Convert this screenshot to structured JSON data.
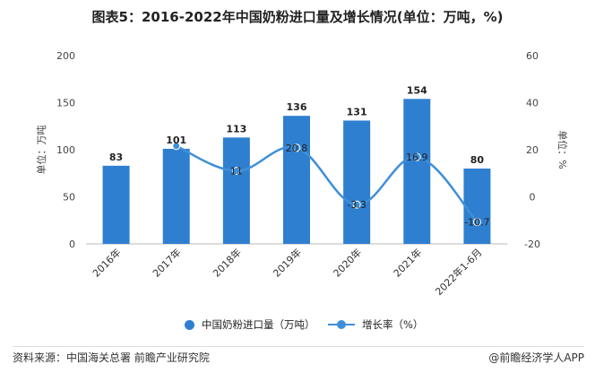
{
  "title": "图表5：2016-2022年中国奶粉进口量及增长情况(单位：万吨，%)",
  "source": "资料来源：中国海关总署 前瞻产业研究院",
  "brand": "@前瞻经济学人APP",
  "colors": {
    "bar": "#2f7fd0",
    "line": "#3f8fd8"
  },
  "chart_data": {
    "type": "bar",
    "categories": [
      "2016年",
      "2017年",
      "2018年",
      "2019年",
      "2020年",
      "2021年",
      "2022年1-6月"
    ],
    "series": [
      {
        "name": "中国奶粉进口量（万吨）",
        "type": "bar",
        "axis": "left",
        "values": [
          83,
          101,
          113,
          136,
          131,
          154,
          80
        ]
      },
      {
        "name": "增长率（%）",
        "type": "line",
        "axis": "right",
        "values": [
          null,
          21.6,
          11,
          20.8,
          -3.3,
          16.9,
          -10.7
        ]
      }
    ],
    "bar_labels": [
      "83",
      "101",
      "113",
      "136",
      "131",
      "154",
      "80"
    ],
    "line_labels": [
      "",
      "",
      "11",
      "20.8",
      "-3.3",
      "16.9",
      "-10.7"
    ],
    "y_left": {
      "label": "单位：万吨",
      "ylim": [
        0,
        200
      ],
      "ticks": [
        0,
        50,
        100,
        150,
        200
      ]
    },
    "y_right": {
      "label": "单位：%",
      "ylim": [
        -20,
        60
      ],
      "ticks": [
        -20,
        0,
        20,
        40,
        60
      ]
    },
    "grid": false,
    "legend": "bottom"
  }
}
